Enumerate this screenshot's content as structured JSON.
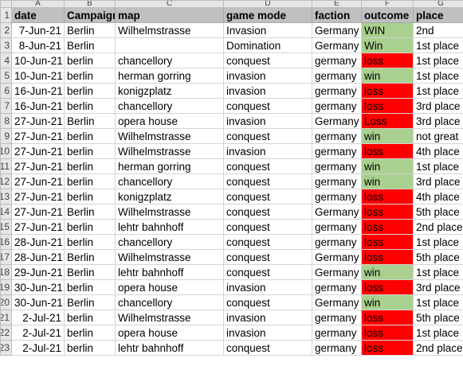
{
  "columns": [
    "A",
    "B",
    "C",
    "D",
    "E",
    "F",
    "G"
  ],
  "header_row": {
    "row_num": "1",
    "cells": [
      "date",
      "Campaign",
      "map",
      "game mode",
      "faction",
      "outcome",
      "place"
    ]
  },
  "rows": [
    {
      "row_num": "2",
      "cells": [
        "7-Jun-21",
        "Berlin",
        "Wilhelmstrasse",
        "Invasion",
        "Germany",
        "WIN",
        "2nd"
      ],
      "result": "win"
    },
    {
      "row_num": "3",
      "cells": [
        "8-Jun-21",
        "Berlin",
        "",
        "Domination",
        "Germany",
        "Win",
        "1st place"
      ],
      "result": "win"
    },
    {
      "row_num": "4",
      "cells": [
        "10-Jun-21",
        "berlin",
        "chancellory",
        "conquest",
        "germany",
        "loss",
        "1st place"
      ],
      "result": "loss"
    },
    {
      "row_num": "5",
      "cells": [
        "10-Jun-21",
        "berlin",
        "herman gorring",
        "invasion",
        "germany",
        "win",
        "1st place"
      ],
      "result": "win"
    },
    {
      "row_num": "6",
      "cells": [
        "16-Jun-21",
        "berlin",
        "konigzplatz",
        "invasion",
        "germany",
        "loss",
        "1st place"
      ],
      "result": "loss"
    },
    {
      "row_num": "7",
      "cells": [
        "16-Jun-21",
        "berlin",
        "chancellory",
        "conquest",
        "germany",
        "loss",
        "3rd place"
      ],
      "result": "loss"
    },
    {
      "row_num": "8",
      "cells": [
        "27-Jun-21",
        "Berlin",
        "opera house",
        "invasion",
        "Germany",
        "Loss",
        "3rd place"
      ],
      "result": "loss"
    },
    {
      "row_num": "9",
      "cells": [
        "27-Jun-21",
        "berlin",
        "Wilhelmstrasse",
        "conquest",
        "germany",
        "win",
        "not great"
      ],
      "result": "win"
    },
    {
      "row_num": "10",
      "cells": [
        "27-Jun-21",
        "berlin",
        "Wilhelmstrasse",
        "invasion",
        "germany",
        "loss",
        "4th place"
      ],
      "result": "loss"
    },
    {
      "row_num": "11",
      "cells": [
        "27-Jun-21",
        "berlin",
        "herman gorring",
        "conquest",
        "germany",
        "win",
        "1st place"
      ],
      "result": "win"
    },
    {
      "row_num": "12",
      "cells": [
        "27-Jun-21",
        "berlin",
        "chancellory",
        "conquest",
        "germany",
        "win",
        "3rd place"
      ],
      "result": "win"
    },
    {
      "row_num": "13",
      "cells": [
        "27-Jun-21",
        "berlin",
        "konigzplatz",
        "conquest",
        "germany",
        "loss",
        "4th place"
      ],
      "result": "loss"
    },
    {
      "row_num": "14",
      "cells": [
        "27-Jun-21",
        "Berlin",
        "Wilhelmstrasse",
        "conquest",
        "Germany",
        "loss",
        "5th place"
      ],
      "result": "loss"
    },
    {
      "row_num": "15",
      "cells": [
        "27-Jun-21",
        "berlin",
        "lehtr bahnhoff",
        "conquest",
        "germany",
        "loss",
        "2nd place"
      ],
      "result": "loss"
    },
    {
      "row_num": "16",
      "cells": [
        "28-Jun-21",
        "berlin",
        "chancellory",
        "conquest",
        "germany",
        "loss",
        "1st place"
      ],
      "result": "loss"
    },
    {
      "row_num": "17",
      "cells": [
        "28-Jun-21",
        "Berlin",
        "Wilhelmstrasse",
        "conquest",
        "Germany",
        "loss",
        "5th place"
      ],
      "result": "loss"
    },
    {
      "row_num": "18",
      "cells": [
        "29-Jun-21",
        "Berlin",
        "lehtr bahnhoff",
        "conquest",
        "Germany",
        "win",
        "1st place"
      ],
      "result": "win"
    },
    {
      "row_num": "19",
      "cells": [
        "30-Jun-21",
        "berlin",
        "opera house",
        "invasion",
        "germany",
        "loss",
        "3rd place"
      ],
      "result": "loss"
    },
    {
      "row_num": "20",
      "cells": [
        "30-Jun-21",
        "Berlin",
        "chancellory",
        "conquest",
        "Germany",
        "win",
        "1st place"
      ],
      "result": "win"
    },
    {
      "row_num": "21",
      "cells": [
        "2-Jul-21",
        "berlin",
        "Wilhelmstrasse",
        "invasion",
        "germany",
        "loss",
        "5th place"
      ],
      "result": "loss"
    },
    {
      "row_num": "22",
      "cells": [
        "2-Jul-21",
        "berlin",
        "opera house",
        "invasion",
        "germany",
        "loss",
        "1st place"
      ],
      "result": "loss"
    },
    {
      "row_num": "23",
      "cells": [
        "2-Jul-21",
        "berlin",
        "lehtr bahnhoff",
        "conquest",
        "germany",
        "loss",
        "2nd place"
      ],
      "result": "loss"
    }
  ],
  "colors": {
    "win": "#a9d08e",
    "loss": "#ff0000",
    "header": "#c0c0c0"
  }
}
